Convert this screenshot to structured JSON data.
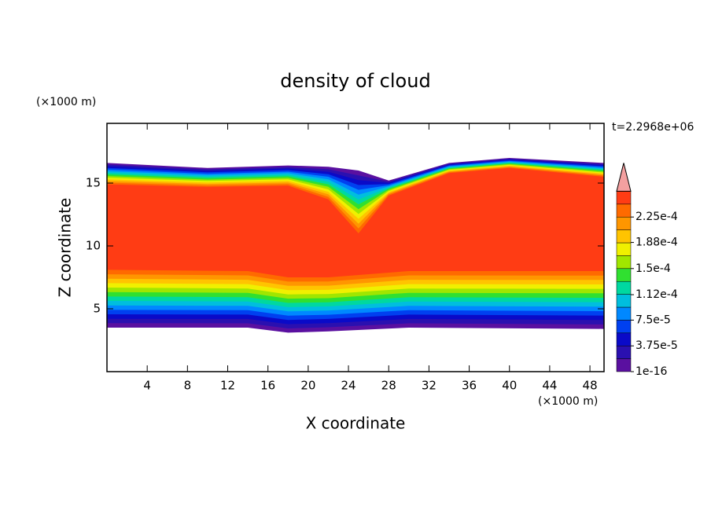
{
  "chart_data": {
    "type": "contourf",
    "title": "density of cloud",
    "x_label": "X coordinate",
    "y_label": "Z coordinate",
    "x_unit": "(×1000 m)",
    "y_unit": "(×1000 m)",
    "annotation": "t=2.2968e+06",
    "xlim": [
      0,
      49.4
    ],
    "ylim": [
      0,
      19.75
    ],
    "xticks": [
      4,
      8,
      12,
      16,
      20,
      24,
      28,
      32,
      36,
      40,
      44,
      48
    ],
    "yticks": [
      5,
      10,
      15
    ],
    "colorbar": {
      "levels": [
        1e-16,
        1.875e-05,
        3.75e-05,
        5.625e-05,
        7.5e-05,
        9.375e-05,
        0.0001125,
        0.00013125,
        0.00015,
        0.00016875,
        0.0001875,
        0.00020625,
        0.000225,
        0.00024375
      ],
      "colors": [
        "#5a10a0",
        "#2a10b0",
        "#0a0ac8",
        "#0040f0",
        "#0088ff",
        "#00bede",
        "#00d8a0",
        "#30e030",
        "#a0e600",
        "#f0f000",
        "#ffc400",
        "#ff9600",
        "#ff6a00",
        "#ff3c14"
      ],
      "extend_color": "#f4a0a0",
      "ticks": [
        1e-16,
        {
          "value": 3.75e-05,
          "label": "3.75e-5"
        },
        {
          "value": 7.5e-05,
          "label": "7.5e-5"
        },
        {
          "value": 0.000112,
          "label": "1.12e-4"
        },
        {
          "value": 0.00015,
          "label": "1.5e-4"
        },
        {
          "value": 0.000188,
          "label": "1.88e-4"
        },
        {
          "value": 0.000225,
          "label": "2.25e-4"
        }
      ]
    }
  }
}
